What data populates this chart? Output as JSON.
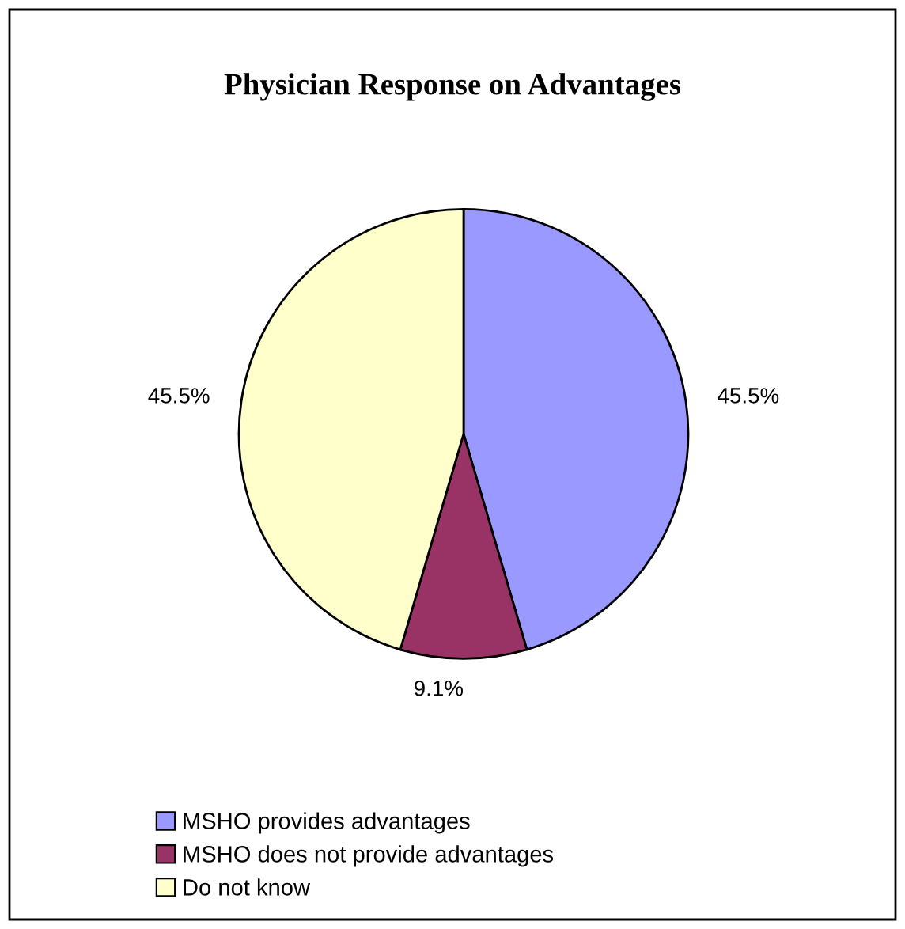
{
  "chart_data": {
    "type": "pie",
    "title": "Physician Response on Advantages",
    "categories": [
      "MSHO provides advantages",
      "MSHO does not provide advantages",
      "Do not know"
    ],
    "values": [
      45.5,
      9.1,
      45.5
    ],
    "colors": [
      "#9999ff",
      "#993366",
      "#ffffcc"
    ],
    "value_labels": [
      "45.5%",
      "9.1%",
      "45.5%"
    ],
    "legend": "bottom"
  }
}
